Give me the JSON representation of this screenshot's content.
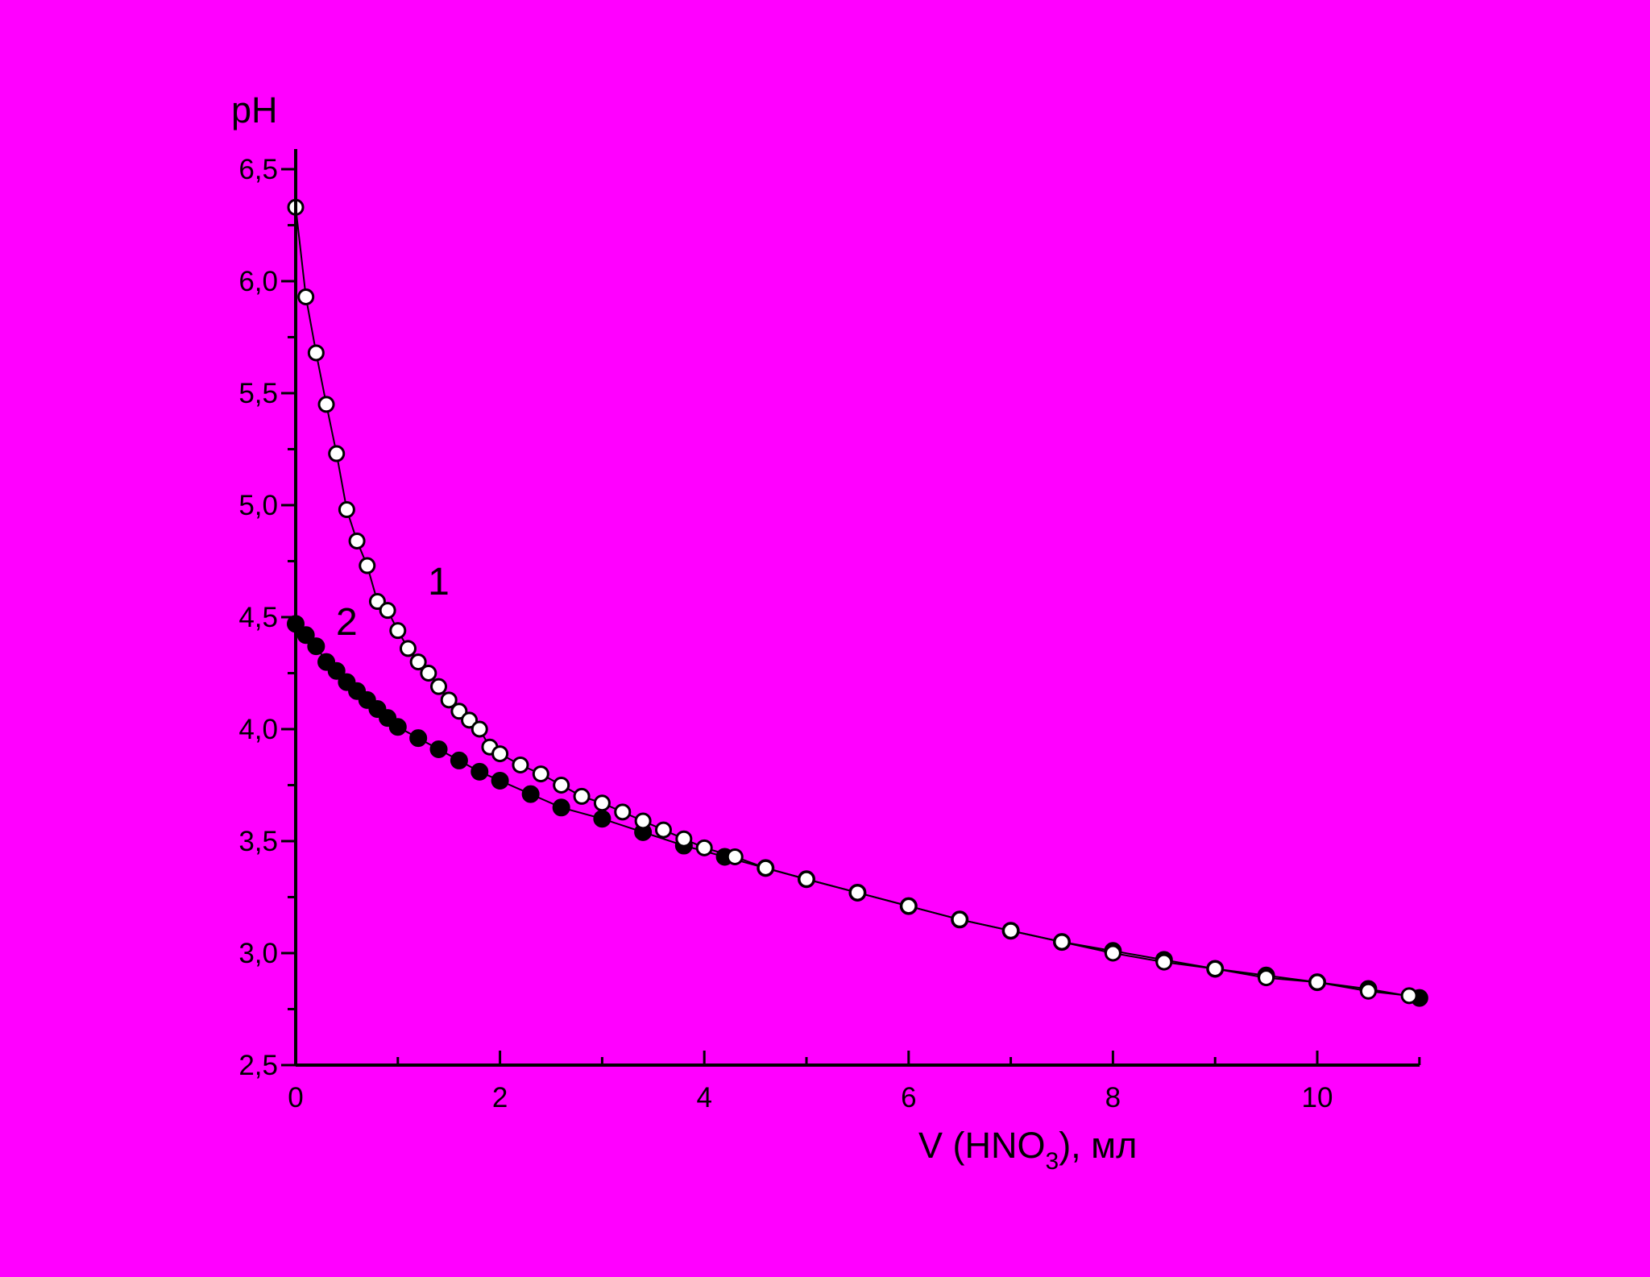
{
  "colors": {
    "background": "#FF00FF",
    "axis": "#000000",
    "series1_fill": "#FFFFFF",
    "series2_fill": "#000000"
  },
  "chart_data": {
    "type": "scatter",
    "title": "",
    "ylabel": "pH",
    "xlabel": {
      "main": "V (HNO",
      "sub": "3",
      "rest": "), мл"
    },
    "xlim": [
      0,
      11
    ],
    "ylim": [
      2.5,
      6.6
    ],
    "x_ticks": [
      0,
      2,
      4,
      6,
      8,
      10
    ],
    "x_tick_labels": [
      "0",
      "2",
      "4",
      "6",
      "8",
      "10"
    ],
    "y_ticks": [
      2.5,
      3.0,
      3.5,
      4.0,
      4.5,
      5.0,
      5.5,
      6.0,
      6.5
    ],
    "y_tick_labels": [
      "2,5",
      "3,0",
      "3,5",
      "4,0",
      "4,5",
      "5,0",
      "5,5",
      "6,0",
      "6,5"
    ],
    "grid": false,
    "legend": "none",
    "annotations": [
      {
        "text": "1",
        "x": 1.4,
        "y": 4.6
      },
      {
        "text": "2",
        "x": 0.5,
        "y": 4.42
      }
    ],
    "series": [
      {
        "label": "1",
        "marker": "open-circle",
        "x": [
          0,
          0.1,
          0.2,
          0.3,
          0.4,
          0.5,
          0.6,
          0.7,
          0.8,
          0.9,
          1.0,
          1.1,
          1.2,
          1.3,
          1.4,
          1.5,
          1.6,
          1.7,
          1.8,
          1.9,
          2.0,
          2.2,
          2.4,
          2.6,
          2.8,
          3.0,
          3.2,
          3.4,
          3.6,
          3.8,
          4.0,
          4.3,
          4.6,
          5.0,
          5.5,
          6.0,
          6.5,
          7.0,
          7.5,
          8.0,
          8.5,
          9.0,
          9.5,
          10.0,
          10.5,
          10.9
        ],
        "y": [
          6.33,
          5.93,
          5.68,
          5.45,
          5.23,
          4.98,
          4.84,
          4.73,
          4.57,
          4.53,
          4.44,
          4.36,
          4.3,
          4.25,
          4.19,
          4.13,
          4.08,
          4.04,
          4.0,
          3.92,
          3.89,
          3.84,
          3.8,
          3.75,
          3.7,
          3.67,
          3.63,
          3.59,
          3.55,
          3.51,
          3.47,
          3.43,
          3.38,
          3.33,
          3.27,
          3.21,
          3.15,
          3.1,
          3.05,
          3.0,
          2.96,
          2.93,
          2.89,
          2.87,
          2.83,
          2.81
        ]
      },
      {
        "label": "2",
        "marker": "filled-circle",
        "x": [
          0,
          0.1,
          0.2,
          0.3,
          0.4,
          0.5,
          0.6,
          0.7,
          0.8,
          0.9,
          1.0,
          1.2,
          1.4,
          1.6,
          1.8,
          2.0,
          2.3,
          2.6,
          3.0,
          3.4,
          3.8,
          4.2,
          4.6,
          5.0,
          5.5,
          6.0,
          6.5,
          7.0,
          7.5,
          8.0,
          8.5,
          9.0,
          9.5,
          10.0,
          10.5,
          11.0
        ],
        "y": [
          4.47,
          4.42,
          4.37,
          4.3,
          4.26,
          4.21,
          4.17,
          4.13,
          4.09,
          4.05,
          4.01,
          3.96,
          3.91,
          3.86,
          3.81,
          3.77,
          3.71,
          3.65,
          3.6,
          3.54,
          3.48,
          3.43,
          3.38,
          3.33,
          3.27,
          3.21,
          3.15,
          3.1,
          3.05,
          3.01,
          2.97,
          2.93,
          2.9,
          2.87,
          2.84,
          2.8
        ]
      }
    ]
  }
}
